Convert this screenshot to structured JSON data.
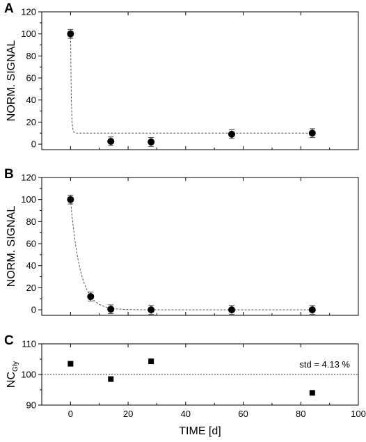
{
  "chart_data": [
    {
      "type": "scatter",
      "panel_label": "A",
      "title": "",
      "xlabel": "",
      "ylabel": "NORM. SIGNAL",
      "xlim": [
        -10,
        100
      ],
      "ylim": [
        -5,
        120
      ],
      "x_ticks": [
        "0",
        "20",
        "40",
        "60",
        "80",
        "100"
      ],
      "x_tick_labels_shown": false,
      "y_ticks": [
        "0",
        "20",
        "40",
        "60",
        "80",
        "100",
        "120"
      ],
      "grid": false,
      "marker": "circle",
      "series": [
        {
          "x": [
            0,
            14,
            28,
            56,
            84
          ],
          "y": [
            100,
            2.5,
            2,
            9,
            10
          ],
          "error": [
            4,
            4,
            4,
            4,
            4
          ]
        }
      ],
      "fit": {
        "style": "dashed",
        "shape": "exponential decay",
        "plateau": 10,
        "rate": 4.0,
        "x": [
          0,
          84
        ]
      }
    },
    {
      "type": "scatter",
      "panel_label": "B",
      "title": "",
      "xlabel": "",
      "ylabel": "NORM. SIGNAL",
      "xlim": [
        -10,
        100
      ],
      "ylim": [
        -5,
        120
      ],
      "x_ticks": [
        "0",
        "20",
        "40",
        "60",
        "80",
        "100"
      ],
      "x_tick_labels_shown": false,
      "y_ticks": [
        "0",
        "20",
        "40",
        "60",
        "80",
        "100",
        "120"
      ],
      "grid": false,
      "marker": "circle",
      "series": [
        {
          "x": [
            0,
            7,
            14,
            28,
            56,
            84
          ],
          "y": [
            100,
            12,
            0.5,
            0,
            0,
            0
          ],
          "error": [
            4,
            4,
            4,
            4,
            4,
            4
          ]
        }
      ],
      "fit": {
        "style": "dashed",
        "shape": "exponential decay",
        "plateau": 0,
        "rate": 0.3,
        "x": [
          0,
          84
        ]
      }
    },
    {
      "type": "scatter",
      "panel_label": "C",
      "title": "",
      "xlabel": "TIME [d]",
      "ylabel": "NC",
      "ylabel_subscript": "Gly",
      "xlim": [
        -10,
        100
      ],
      "ylim": [
        90,
        110
      ],
      "x_ticks": [
        "0",
        "20",
        "40",
        "60",
        "80",
        "100"
      ],
      "x_tick_labels_shown": true,
      "y_ticks": [
        "90",
        "100",
        "110"
      ],
      "grid": false,
      "marker": "square",
      "series": [
        {
          "x": [
            0,
            14,
            28,
            84
          ],
          "y": [
            103.5,
            98.5,
            104.3,
            94
          ]
        }
      ],
      "reference_line": {
        "style": "dotted",
        "y": 100
      },
      "annotation": "std = 4.13 %"
    }
  ]
}
